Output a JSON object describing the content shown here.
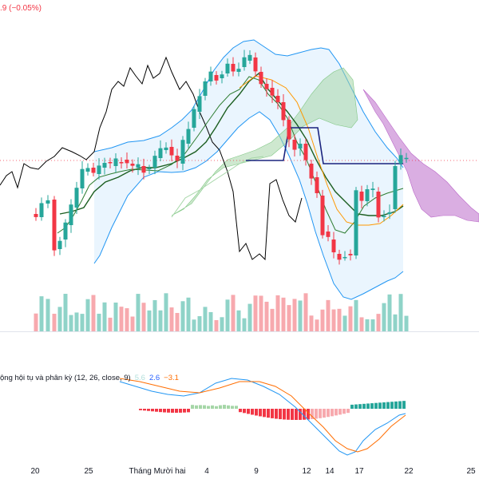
{
  "header": {
    "price_change": ".9 (−0.05%)"
  },
  "macd_legend": {
    "title": "ộng hội tụ và phân kỳ (12, 26, close, 9)",
    "histogram_value": "5.6",
    "macd_value": "2.6",
    "signal_value": "−3.1"
  },
  "x_axis": {
    "labels": [
      "20",
      "25",
      "Tháng Mười hai",
      "4",
      "9",
      "12",
      "14",
      "17",
      "22",
      "25"
    ]
  },
  "colors": {
    "up": "#26a69a",
    "down": "#f23645",
    "volume_up": "#8fd3c8",
    "volume_down": "#f7a9ae",
    "bollinger_fill": "#e3f2fd",
    "bollinger_line": "#2196f3",
    "cloud_bull": "#a5d6a7",
    "cloud_bear": "#ce93d8",
    "kijun": "#1b5e20",
    "tenkan": "#2e7d32",
    "lagging": "#000000",
    "hline": "#1a237e",
    "macd_line": "#2196f3",
    "signal_line": "#ff6d00"
  },
  "chart_data": {
    "type": "candlestick",
    "candles_count": 60,
    "price_labels_visible": false
  }
}
